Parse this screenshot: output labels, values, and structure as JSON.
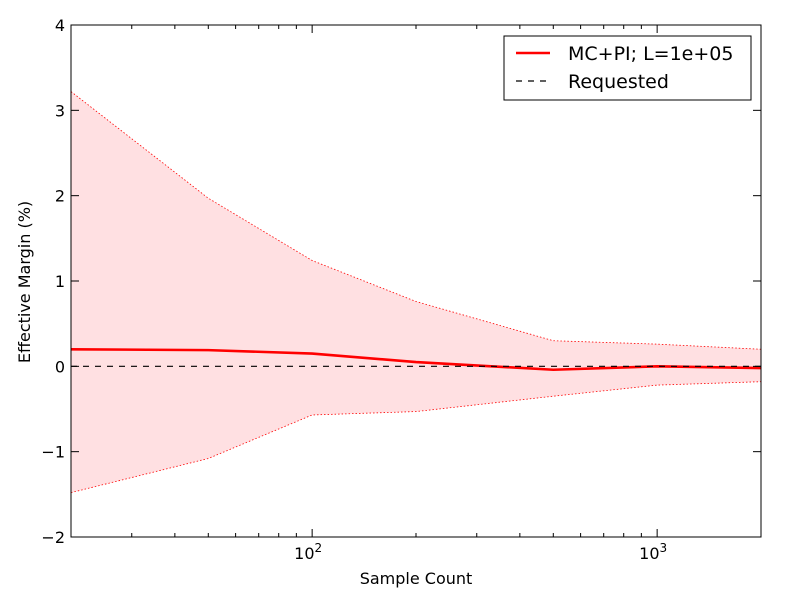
{
  "chart_data": {
    "type": "line",
    "xlabel": "Sample Count",
    "ylabel": "Effective Margin (%)",
    "xscale": "log",
    "xlim": [
      20,
      2000
    ],
    "ylim": [
      -2,
      4
    ],
    "yticks": [
      -2,
      -1,
      0,
      1,
      2,
      3,
      4
    ],
    "xticks_major": [
      100,
      1000
    ],
    "legend_position": "top-right",
    "grid": false,
    "series": [
      {
        "name": "MC+PI; L=1e+05",
        "style": "solid",
        "color": "#ff0000",
        "x": [
          20,
          50,
          100,
          200,
          500,
          1000,
          2000
        ],
        "y": [
          0.2,
          0.19,
          0.15,
          0.05,
          -0.04,
          0.0,
          -0.02
        ]
      },
      {
        "name": "Requested",
        "style": "dashed",
        "color": "#000000",
        "x": [
          20,
          2000
        ],
        "y": [
          0,
          0
        ]
      }
    ],
    "band": {
      "color": "#ffe0e2",
      "edge_color": "#ff0000",
      "x": [
        20,
        50,
        100,
        200,
        500,
        1000,
        2000
      ],
      "upper": [
        3.22,
        1.97,
        1.24,
        0.76,
        0.3,
        0.26,
        0.2
      ],
      "lower": [
        -1.48,
        -1.08,
        -0.57,
        -0.53,
        -0.35,
        -0.22,
        -0.18
      ]
    }
  }
}
